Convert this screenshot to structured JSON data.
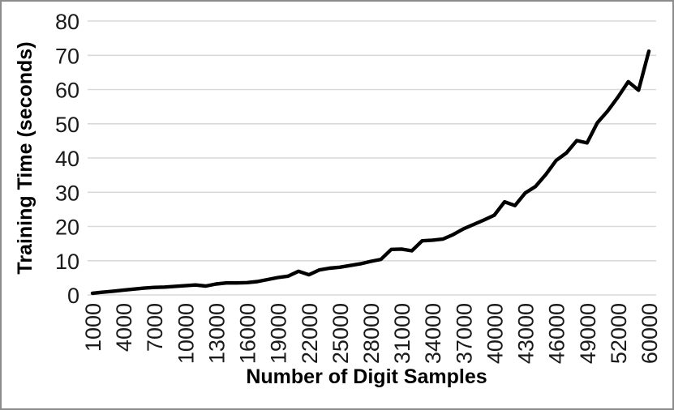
{
  "chart": {
    "y_axis_title": "Training Time (seconds)",
    "x_axis_title": "Number of Digit Samples",
    "colors": {
      "line": "#000000",
      "gridline": "#d9d9d9",
      "tick_text": "#1a1a1a",
      "frame_border": "#8c8c8c",
      "background": "#ffffff"
    }
  },
  "chart_data": {
    "type": "line",
    "title": "",
    "xlabel": "Number of Digit Samples",
    "ylabel": "Training Time (seconds)",
    "x": [
      1000,
      2000,
      3000,
      4000,
      5000,
      6000,
      7000,
      8000,
      9000,
      10000,
      11000,
      12000,
      13000,
      14000,
      15000,
      16000,
      17000,
      18000,
      19000,
      20000,
      21000,
      22000,
      23000,
      24000,
      25000,
      26000,
      27000,
      28000,
      29000,
      30000,
      31000,
      32000,
      33000,
      34000,
      35000,
      36000,
      37000,
      38000,
      39000,
      40000,
      41000,
      42000,
      43000,
      44000,
      45000,
      46000,
      47000,
      48000,
      49000,
      50000,
      51000,
      52000,
      53000,
      54000,
      60000
    ],
    "series": [
      {
        "name": "Training Time",
        "values": [
          0.5,
          0.8,
          1.1,
          1.4,
          1.7,
          2.0,
          2.2,
          2.3,
          2.5,
          2.7,
          2.9,
          2.6,
          3.2,
          3.5,
          3.5,
          3.6,
          3.9,
          4.5,
          5.1,
          5.5,
          6.9,
          5.9,
          7.3,
          7.8,
          8.1,
          8.6,
          9.1,
          9.8,
          10.4,
          13.3,
          13.4,
          12.9,
          15.8,
          16.0,
          16.3,
          17.6,
          19.3,
          20.6,
          21.9,
          23.3,
          27.2,
          26.1,
          29.8,
          31.7,
          35.2,
          39.3,
          41.5,
          45.1,
          44.4,
          50.3,
          53.7,
          57.8,
          62.3,
          59.8,
          71.2
        ]
      }
    ],
    "ylim": [
      0,
      80
    ],
    "y_ticks": [
      0,
      10,
      20,
      30,
      40,
      50,
      60,
      70,
      80
    ],
    "x_tick_labels": [
      "1000",
      "4000",
      "7000",
      "10000",
      "13000",
      "16000",
      "19000",
      "22000",
      "25000",
      "28000",
      "31000",
      "34000",
      "37000",
      "40000",
      "43000",
      "46000",
      "49000",
      "52000",
      "60000"
    ],
    "x_tick_every_n_points": 3,
    "grid": true,
    "legend_position": "none"
  }
}
